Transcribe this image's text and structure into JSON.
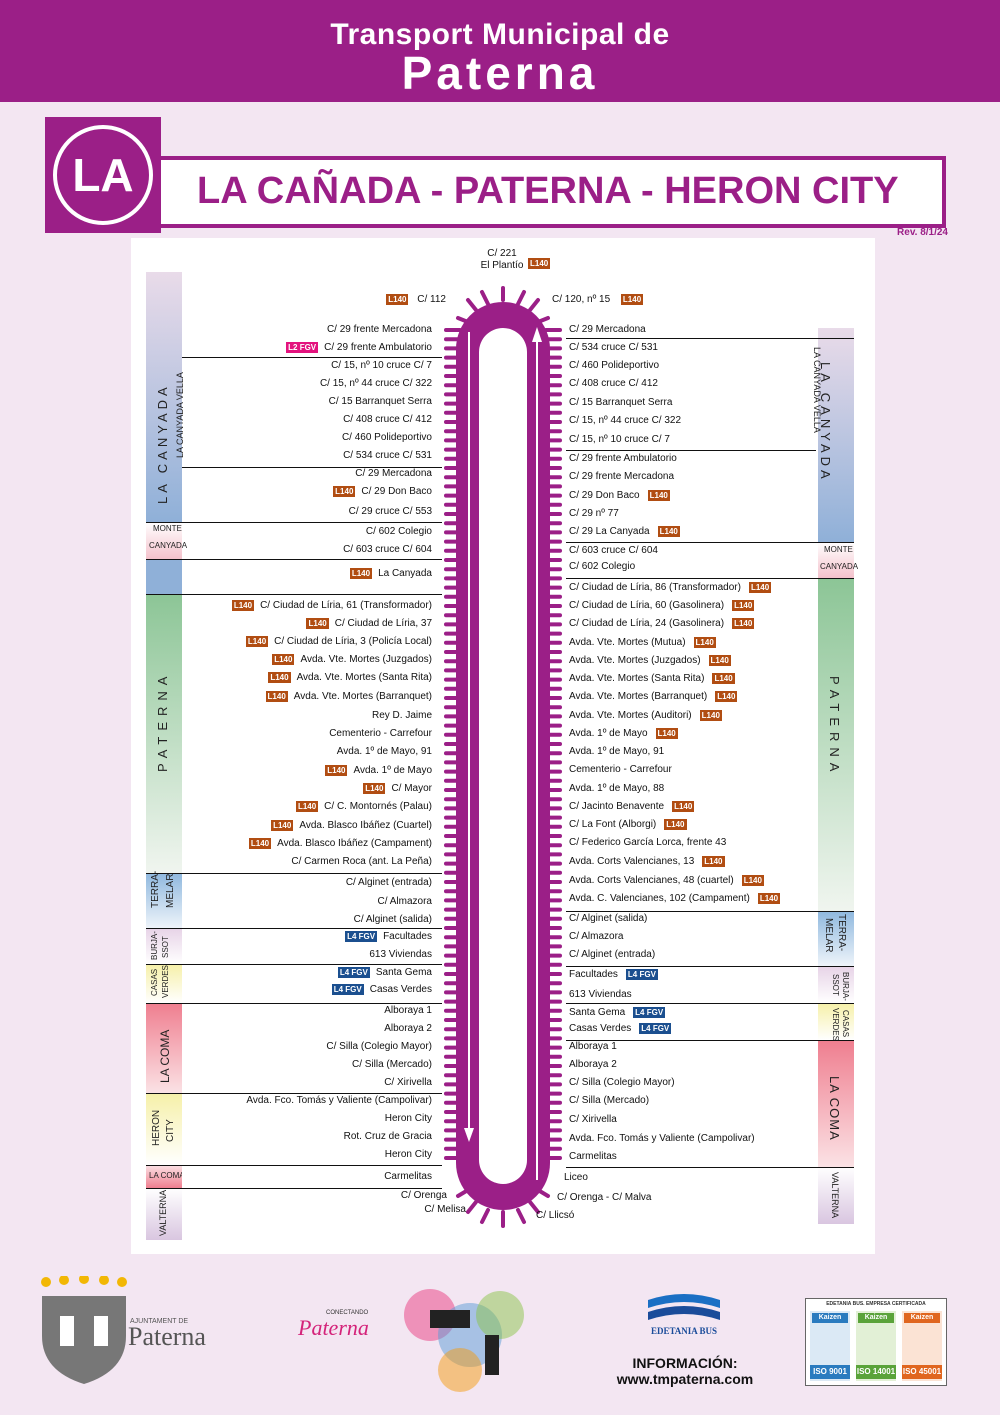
{
  "header": {
    "line1": "Transport Municipal de",
    "line2": "Paterna"
  },
  "line_code": "LA",
  "route_title": "LA CAÑADA - PATERNA - HERON CITY",
  "revision": "Rev. 8/1/24",
  "colors": {
    "purple": "#9b1f87",
    "badge_l140": "#b14d12",
    "badge_fgv": "#1b4f8f",
    "badge_l2": "#e3137e"
  },
  "terminals": {
    "top": {
      "line1": "C/ 221",
      "line2": "El Plantío",
      "badge": "L140"
    },
    "top_left": {
      "name": "C/ 112",
      "badge": "L140"
    },
    "top_right": {
      "name": "C/ 120, nº 15",
      "badge": "L140"
    }
  },
  "left_stops": [
    {
      "name": "C/ 29 frente Mercadona",
      "badge": ""
    },
    {
      "name": "C/ 29 frente Ambulatorio",
      "badge": "L2 FGV"
    },
    {
      "name": "C/ 15, nº 10 cruce C/ 7",
      "badge": ""
    },
    {
      "name": "C/ 15, nº 44 cruce C/ 322",
      "badge": ""
    },
    {
      "name": "C/ 15 Barranquet Serra",
      "badge": ""
    },
    {
      "name": "C/ 408 cruce C/ 412",
      "badge": ""
    },
    {
      "name": "C/ 460 Polideportivo",
      "badge": ""
    },
    {
      "name": "C/ 534 cruce C/ 531",
      "badge": ""
    },
    {
      "name": "C/ 29 Mercadona",
      "badge": ""
    },
    {
      "name": "C/ 29 Don Baco",
      "badge": "L140"
    },
    {
      "name": "C/ 29 cruce C/ 553",
      "badge": ""
    },
    {
      "name": "C/ 602 Colegio",
      "badge": ""
    },
    {
      "name": "C/ 603 cruce C/ 604",
      "badge": ""
    },
    {
      "name": "La Canyada",
      "badge": "L140"
    },
    {
      "name": "C/ Ciudad de Líria, 61 (Transformador)",
      "badge": "L140"
    },
    {
      "name": "C/ Ciudad de Líria, 37",
      "badge": "L140"
    },
    {
      "name": "C/ Ciudad de Líria, 3 (Policía Local)",
      "badge": "L140"
    },
    {
      "name": "Avda. Vte. Mortes (Juzgados)",
      "badge": "L140"
    },
    {
      "name": "Avda. Vte. Mortes (Santa Rita)",
      "badge": "L140"
    },
    {
      "name": "Avda. Vte. Mortes (Barranquet)",
      "badge": "L140"
    },
    {
      "name": "Rey D. Jaime",
      "badge": ""
    },
    {
      "name": "Cementerio - Carrefour",
      "badge": ""
    },
    {
      "name": "Avda. 1º de Mayo, 91",
      "badge": ""
    },
    {
      "name": "Avda. 1º de Mayo",
      "badge": "L140"
    },
    {
      "name": "C/ Mayor",
      "badge": "L140"
    },
    {
      "name": "C/ C. Montornés (Palau)",
      "badge": "L140"
    },
    {
      "name": "Avda. Blasco Ibáñez (Cuartel)",
      "badge": "L140"
    },
    {
      "name": "Avda. Blasco Ibáñez (Campament)",
      "badge": "L140"
    },
    {
      "name": "C/ Carmen Roca (ant. La Peña)",
      "badge": ""
    },
    {
      "name": "C/ Alginet (entrada)",
      "badge": ""
    },
    {
      "name": "C/ Almazora",
      "badge": ""
    },
    {
      "name": "C/ Alginet (salida)",
      "badge": ""
    },
    {
      "name": "Facultades",
      "badge": "L4 FGV"
    },
    {
      "name": "613 Viviendas",
      "badge": ""
    },
    {
      "name": "Santa Gema",
      "badge": "L4 FGV"
    },
    {
      "name": "Casas Verdes",
      "badge": "L4 FGV"
    },
    {
      "name": "Alboraya 1",
      "badge": ""
    },
    {
      "name": "Alboraya 2",
      "badge": ""
    },
    {
      "name": "C/ Silla (Colegio Mayor)",
      "badge": ""
    },
    {
      "name": "C/ Silla (Mercado)",
      "badge": ""
    },
    {
      "name": "C/ Xirivella",
      "badge": ""
    },
    {
      "name": "Avda. Fco. Tomás y Valiente (Campolivar)",
      "badge": ""
    },
    {
      "name": "Heron City",
      "badge": ""
    },
    {
      "name": "Rot. Cruz de Gracia",
      "badge": ""
    },
    {
      "name": "Heron City",
      "badge": ""
    },
    {
      "name": "Carmelitas",
      "badge": ""
    },
    {
      "name": "C/ Orenga",
      "badge": ""
    },
    {
      "name": "C/ Melisa",
      "badge": ""
    }
  ],
  "right_stops": [
    {
      "name": "C/ 29 Mercadona",
      "badge": ""
    },
    {
      "name": "C/ 534 cruce C/ 531",
      "badge": ""
    },
    {
      "name": "C/ 460 Polideportivo",
      "badge": ""
    },
    {
      "name": "C/ 408 cruce C/ 412",
      "badge": ""
    },
    {
      "name": "C/ 15 Barranquet Serra",
      "badge": ""
    },
    {
      "name": "C/ 15, nº 44 cruce C/ 322",
      "badge": ""
    },
    {
      "name": "C/ 15, nº 10 cruce C/ 7",
      "badge": ""
    },
    {
      "name": "C/ 29 frente Ambulatorio",
      "badge": ""
    },
    {
      "name": "C/ 29 frente Mercadona",
      "badge": ""
    },
    {
      "name": "C/ 29 Don Baco",
      "badge": "L140"
    },
    {
      "name": "C/ 29 nº 77",
      "badge": ""
    },
    {
      "name": "C/ 29 La Canyada",
      "badge": "L140"
    },
    {
      "name": "C/ 603 cruce C/ 604",
      "badge": ""
    },
    {
      "name": "C/ 602 Colegio",
      "badge": ""
    },
    {
      "name": "C/ Ciudad de Líria, 86 (Transformador)",
      "badge": "L140"
    },
    {
      "name": "C/ Ciudad de Líria, 60 (Gasolinera)",
      "badge": "L140"
    },
    {
      "name": "C/ Ciudad de Líria, 24 (Gasolinera)",
      "badge": "L140"
    },
    {
      "name": "Avda. Vte. Mortes (Mutua)",
      "badge": "L140"
    },
    {
      "name": "Avda. Vte. Mortes (Juzgados)",
      "badge": "L140"
    },
    {
      "name": "Avda. Vte. Mortes (Santa Rita)",
      "badge": "L140"
    },
    {
      "name": "Avda. Vte. Mortes (Barranquet)",
      "badge": "L140"
    },
    {
      "name": "Avda. Vte. Mortes (Auditori)",
      "badge": "L140"
    },
    {
      "name": "Avda. 1º de Mayo",
      "badge": "L140"
    },
    {
      "name": "Avda. 1º de Mayo, 91",
      "badge": ""
    },
    {
      "name": "Cementerio - Carrefour",
      "badge": ""
    },
    {
      "name": "Avda. 1º de Mayo, 88",
      "badge": ""
    },
    {
      "name": "C/ Jacinto Benavente",
      "badge": "L140"
    },
    {
      "name": "C/ La Font (Alborgi)",
      "badge": "L140"
    },
    {
      "name": "C/ Federico García Lorca, frente 43",
      "badge": ""
    },
    {
      "name": "Avda. Corts Valencianes, 13",
      "badge": "L140"
    },
    {
      "name": "Avda. Corts Valencianes, 48 (cuartel)",
      "badge": "L140"
    },
    {
      "name": "Avda. C. Valencianes, 102 (Campament)",
      "badge": "L140"
    },
    {
      "name": "C/ Alginet (salida)",
      "badge": ""
    },
    {
      "name": "C/ Almazora",
      "badge": ""
    },
    {
      "name": "C/ Alginet (entrada)",
      "badge": ""
    },
    {
      "name": "Facultades",
      "badge": "L4 FGV"
    },
    {
      "name": "613 Viviendas",
      "badge": ""
    },
    {
      "name": "Santa Gema",
      "badge": "L4 FGV"
    },
    {
      "name": "Casas Verdes",
      "badge": "L4 FGV"
    },
    {
      "name": "Alboraya 1",
      "badge": ""
    },
    {
      "name": "Alboraya 2",
      "badge": ""
    },
    {
      "name": "C/ Silla (Colegio Mayor)",
      "badge": ""
    },
    {
      "name": "C/ Silla (Mercado)",
      "badge": ""
    },
    {
      "name": "C/ Xirivella",
      "badge": ""
    },
    {
      "name": "Avda. Fco. Tomás y Valiente (Campolivar)",
      "badge": ""
    },
    {
      "name": "Carmelitas",
      "badge": ""
    },
    {
      "name": "Liceo",
      "badge": ""
    },
    {
      "name": "C/ Orenga - C/ Malva",
      "badge": ""
    },
    {
      "name": "C/ Llicsó",
      "badge": ""
    }
  ],
  "zones": {
    "left": [
      "LA CANYADA",
      "LA CANYADA VELLA",
      "MONTE",
      "CANYADA",
      "PATERNA",
      "TERRA-",
      "MELAR",
      "BURJA-",
      "SSOT",
      "CASAS",
      "VERDES",
      "LA COMA",
      "HERON",
      "CITY",
      "LA COMA",
      "VALTERNA"
    ],
    "right": [
      "LA CANYADA",
      "LA CANYADA VELLA",
      "MONTE",
      "CANYADA",
      "PATERNA",
      "TERRA-",
      "MELAR",
      "BURJA-",
      "SSOT",
      "CASAS",
      "VERDES",
      "LA COMA",
      "VALTERNA"
    ]
  },
  "footer": {
    "ajuntament_small": "AJUNTAMENT DE",
    "ajuntament_big": "Paterna",
    "conectando_small": "CONECTANDO",
    "conectando_big": "Paterna",
    "edetania": "EDETANIA BUS",
    "info_label": "INFORMACIÓN:",
    "info_url": "www.tmpaterna.com",
    "cert_title": "EDETANIA BUS. EMPRESA CERTIFICADA",
    "cert_kaizen": "Kaizen",
    "cert_items": [
      "ISO 9001",
      "ISO 14001",
      "ISO 45001"
    ]
  }
}
